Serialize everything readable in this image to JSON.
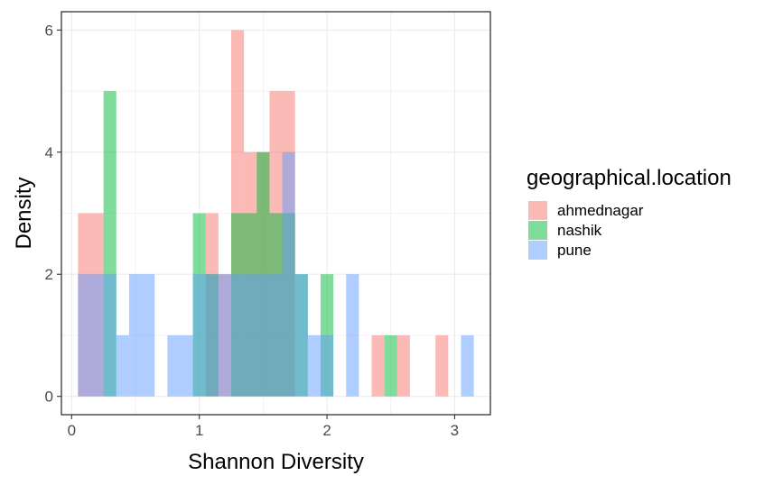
{
  "chart_data": {
    "type": "bar",
    "subtype": "overlaid-histogram",
    "title": "",
    "xlabel": "Shannon Diversity",
    "ylabel": "Density",
    "xlim": [
      -0.08,
      3.28
    ],
    "ylim": [
      -0.3,
      6.3
    ],
    "x_ticks": [
      0,
      1,
      2,
      3
    ],
    "y_ticks": [
      0,
      2,
      4,
      6
    ],
    "grid": true,
    "legend": {
      "title": "geographical.location",
      "position": "right"
    },
    "bin_width": 0.1,
    "series": [
      {
        "name": "ahmednagar",
        "color": "#F8766D",
        "bars": [
          {
            "x0": 0.05,
            "x1": 0.25,
            "y": 3
          },
          {
            "x0": 1.05,
            "x1": 1.15,
            "y": 3
          },
          {
            "x0": 1.15,
            "x1": 1.25,
            "y": 2
          },
          {
            "x0": 1.25,
            "x1": 1.35,
            "y": 6
          },
          {
            "x0": 1.35,
            "x1": 1.55,
            "y": 4
          },
          {
            "x0": 1.55,
            "x1": 1.75,
            "y": 5
          },
          {
            "x0": 2.35,
            "x1": 2.45,
            "y": 1
          },
          {
            "x0": 2.55,
            "x1": 2.65,
            "y": 1
          },
          {
            "x0": 2.85,
            "x1": 2.95,
            "y": 1
          }
        ]
      },
      {
        "name": "nashik",
        "color": "#00BA38",
        "bars": [
          {
            "x0": 0.25,
            "x1": 0.35,
            "y": 5
          },
          {
            "x0": 0.95,
            "x1": 1.05,
            "y": 3
          },
          {
            "x0": 1.05,
            "x1": 1.15,
            "y": 2
          },
          {
            "x0": 1.25,
            "x1": 1.45,
            "y": 3
          },
          {
            "x0": 1.45,
            "x1": 1.55,
            "y": 4
          },
          {
            "x0": 1.55,
            "x1": 1.65,
            "y": 3
          },
          {
            "x0": 1.65,
            "x1": 1.75,
            "y": 3
          },
          {
            "x0": 1.75,
            "x1": 1.85,
            "y": 2
          },
          {
            "x0": 1.95,
            "x1": 2.05,
            "y": 2
          },
          {
            "x0": 2.45,
            "x1": 2.55,
            "y": 1
          }
        ]
      },
      {
        "name": "pune",
        "color": "#619CFF",
        "bars": [
          {
            "x0": 0.05,
            "x1": 0.35,
            "y": 2
          },
          {
            "x0": 0.35,
            "x1": 0.45,
            "y": 1
          },
          {
            "x0": 0.45,
            "x1": 0.65,
            "y": 2
          },
          {
            "x0": 0.75,
            "x1": 0.95,
            "y": 1
          },
          {
            "x0": 0.95,
            "x1": 1.55,
            "y": 2
          },
          {
            "x0": 1.55,
            "x1": 1.65,
            "y": 2
          },
          {
            "x0": 1.65,
            "x1": 1.75,
            "y": 4
          },
          {
            "x0": 1.75,
            "x1": 1.85,
            "y": 2
          },
          {
            "x0": 1.85,
            "x1": 1.95,
            "y": 1
          },
          {
            "x0": 1.95,
            "x1": 2.05,
            "y": 1
          },
          {
            "x0": 2.15,
            "x1": 2.25,
            "y": 2
          },
          {
            "x0": 3.05,
            "x1": 3.15,
            "y": 1
          }
        ]
      }
    ]
  }
}
